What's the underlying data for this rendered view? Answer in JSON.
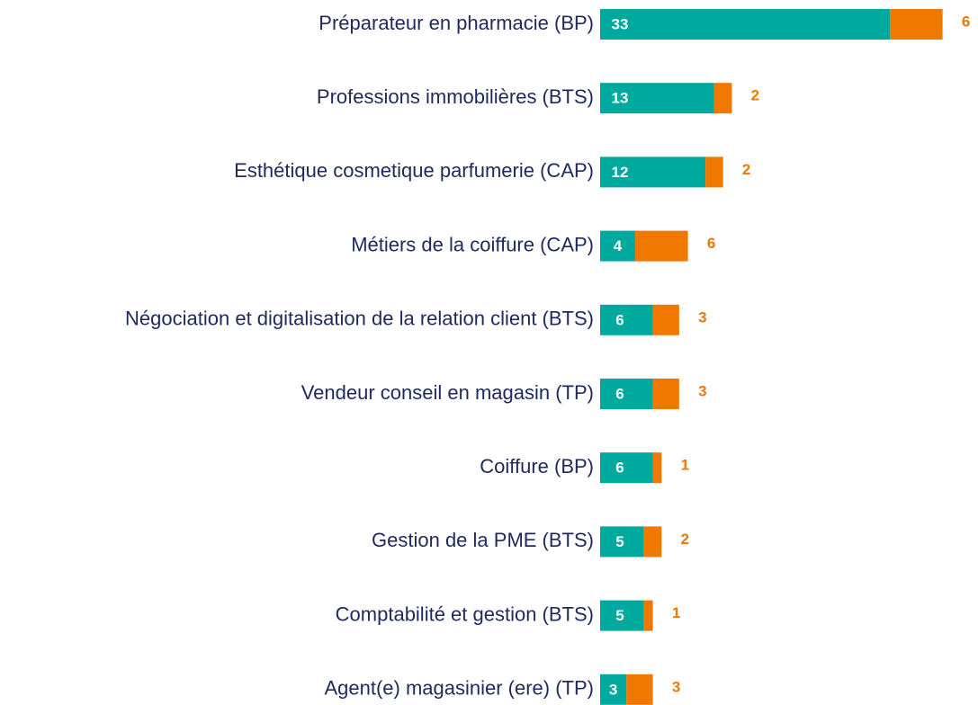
{
  "chart_data": {
    "type": "stacked-barh",
    "categories": [
      "Préparateur en pharmacie (BP)",
      "Professions immobilières (BTS)",
      "Esthétique cosmetique parfumerie (CAP)",
      "Métiers de la coiffure (CAP)",
      "Négociation et digitalisation de la relation client (BTS)",
      "Vendeur conseil en magasin (TP)",
      "Coiffure (BP)",
      "Gestion de la PME (BTS)",
      "Comptabilité et gestion (BTS)",
      "Agent(e) magasinier (ere) (TP)"
    ],
    "series": [
      {
        "color": "#00a99d",
        "values": [
          33,
          13,
          12,
          4,
          6,
          6,
          6,
          5,
          5,
          3
        ]
      },
      {
        "color": "#f07800",
        "values": [
          6,
          2,
          2,
          6,
          3,
          3,
          1,
          2,
          1,
          3
        ]
      }
    ]
  }
}
